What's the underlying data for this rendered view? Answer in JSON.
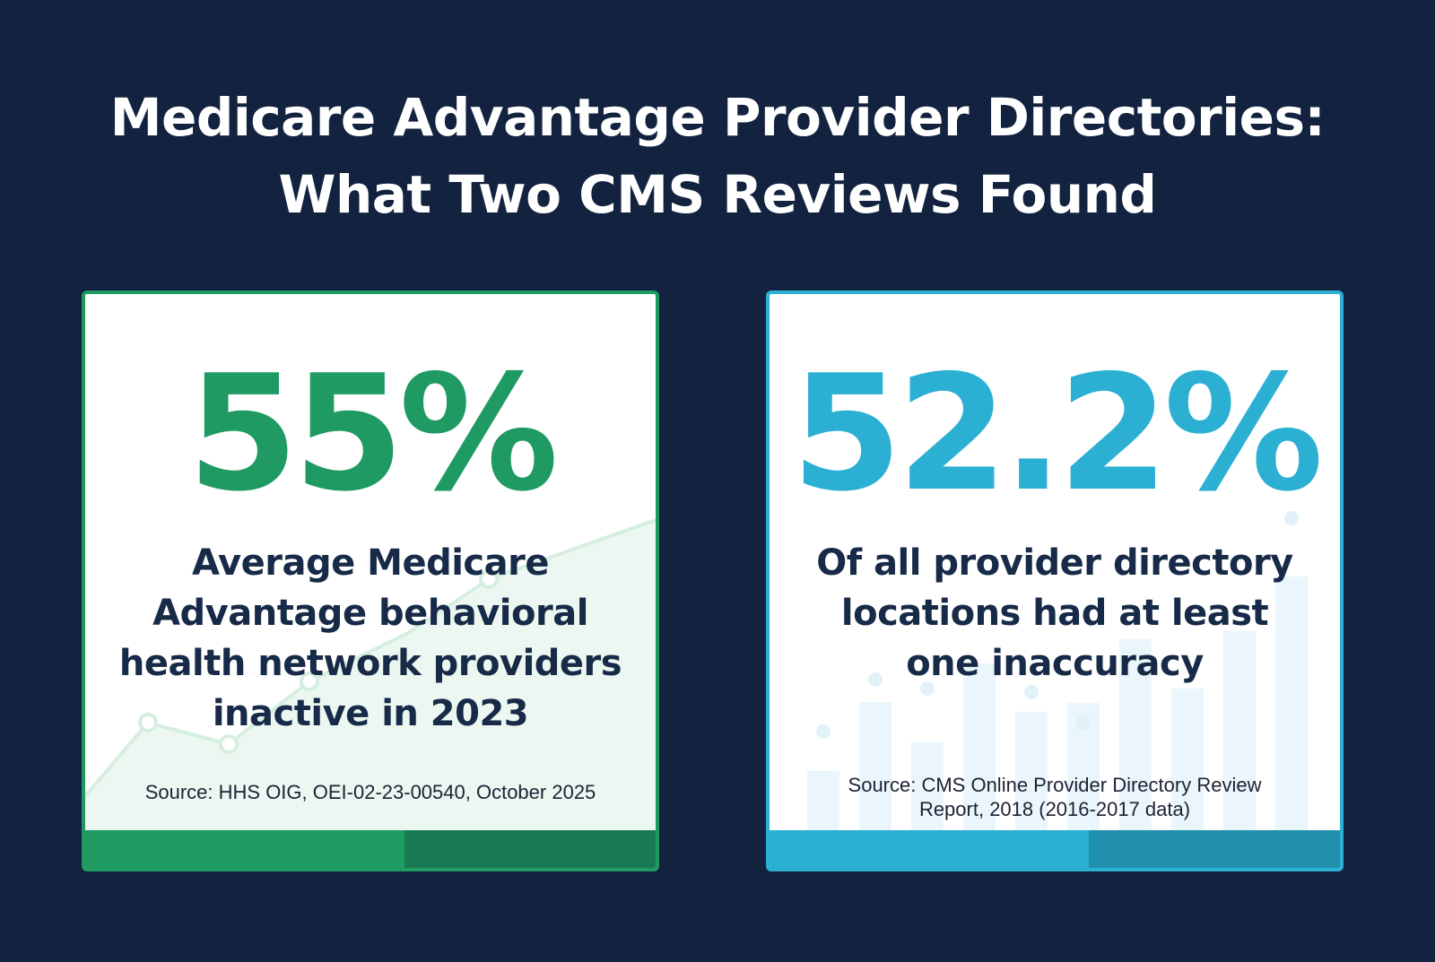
{
  "title": {
    "line1": "Medicare Advantage Provider Directories:",
    "line2": "What Two CMS Reviews Found"
  },
  "cards": [
    {
      "stat": "55%",
      "description": [
        "Average Medicare",
        "Advantage behavioral",
        "health network providers",
        "inactive in 2023"
      ],
      "source": [
        "Source: HHS OIG, OEI-02-23-00540, October 2025"
      ],
      "accent_color": "#1f9a63",
      "background_graphic": "line-trend-decoration"
    },
    {
      "stat": "52.2%",
      "description": [
        "Of all provider directory",
        "locations had at least",
        "one inaccuracy"
      ],
      "source": [
        "Source: CMS Online Provider Directory Review",
        "Report, 2018 (2016-2017 data)"
      ],
      "accent_color": "#2bb0d4",
      "background_graphic": "bar-decoration"
    }
  ]
}
